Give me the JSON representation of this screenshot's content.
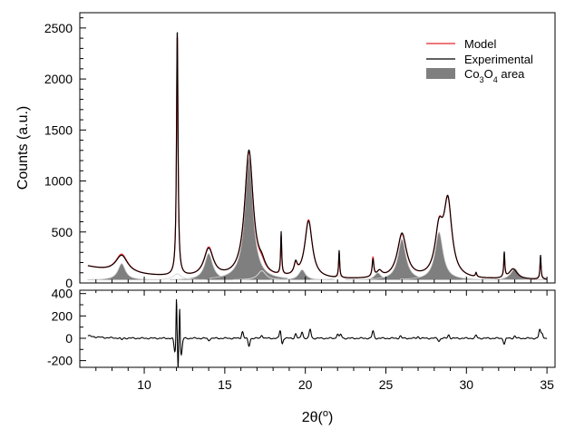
{
  "chart_data": [
    {
      "type": "line",
      "panel": "main",
      "title": "",
      "ylabel": "Counts (a.u.)",
      "xlim": [
        6,
        35.5
      ],
      "ylim": [
        0,
        2650
      ],
      "yticks": [
        0,
        500,
        1000,
        1500,
        2000,
        2500
      ],
      "legend": {
        "position": "top-right",
        "entries": [
          {
            "label": "Model",
            "kind": "line",
            "color": "#e8262a"
          },
          {
            "label": "Experimental",
            "kind": "line",
            "color": "#000000"
          },
          {
            "label_main": "Co",
            "sub1": "3",
            "mid": "O",
            "sub2": "4",
            "tail": " area",
            "kind": "area",
            "color": "#7f7f7f"
          }
        ]
      },
      "baseline": 30,
      "background_offset": 130,
      "background_decay": 3.2,
      "experimental_peaks": [
        {
          "center": 8.6,
          "height": 170,
          "width": 0.45
        },
        {
          "center": 12.05,
          "height": 2430,
          "width": 0.055
        },
        {
          "center": 14.0,
          "height": 275,
          "width": 0.35
        },
        {
          "center": 16.5,
          "height": 1250,
          "width": 0.32
        },
        {
          "center": 17.3,
          "height": 80,
          "width": 0.25
        },
        {
          "center": 18.5,
          "height": 420,
          "width": 0.04
        },
        {
          "center": 19.4,
          "height": 110,
          "width": 0.12
        },
        {
          "center": 20.2,
          "height": 560,
          "width": 0.28
        },
        {
          "center": 22.1,
          "height": 270,
          "width": 0.04
        },
        {
          "center": 24.2,
          "height": 170,
          "width": 0.06
        },
        {
          "center": 24.6,
          "height": 60,
          "width": 0.2
        },
        {
          "center": 26.0,
          "height": 440,
          "width": 0.35
        },
        {
          "center": 28.3,
          "height": 430,
          "width": 0.3
        },
        {
          "center": 28.85,
          "height": 720,
          "width": 0.3
        },
        {
          "center": 30.6,
          "height": 40,
          "width": 0.05
        },
        {
          "center": 32.35,
          "height": 250,
          "width": 0.04
        },
        {
          "center": 32.9,
          "height": 100,
          "width": 0.3
        },
        {
          "center": 34.6,
          "height": 240,
          "width": 0.04
        }
      ],
      "model_peaks": [
        {
          "center": 8.6,
          "height": 180,
          "width": 0.45
        },
        {
          "center": 12.05,
          "height": 2380,
          "width": 0.055
        },
        {
          "center": 14.0,
          "height": 285,
          "width": 0.35
        },
        {
          "center": 16.5,
          "height": 1240,
          "width": 0.32
        },
        {
          "center": 17.3,
          "height": 60,
          "width": 0.25
        },
        {
          "center": 18.5,
          "height": 380,
          "width": 0.04
        },
        {
          "center": 19.4,
          "height": 100,
          "width": 0.12
        },
        {
          "center": 20.2,
          "height": 570,
          "width": 0.28
        },
        {
          "center": 22.1,
          "height": 240,
          "width": 0.04
        },
        {
          "center": 24.2,
          "height": 190,
          "width": 0.06
        },
        {
          "center": 24.6,
          "height": 60,
          "width": 0.2
        },
        {
          "center": 26.0,
          "height": 430,
          "width": 0.35
        },
        {
          "center": 28.3,
          "height": 440,
          "width": 0.3
        },
        {
          "center": 28.85,
          "height": 710,
          "width": 0.3
        },
        {
          "center": 30.6,
          "height": 40,
          "width": 0.05
        },
        {
          "center": 32.35,
          "height": 230,
          "width": 0.04
        },
        {
          "center": 32.9,
          "height": 100,
          "width": 0.3
        },
        {
          "center": 34.6,
          "height": 220,
          "width": 0.04
        }
      ],
      "co3o4_peaks": [
        {
          "center": 8.6,
          "height": 160,
          "width": 0.28
        },
        {
          "center": 14.0,
          "height": 260,
          "width": 0.3
        },
        {
          "center": 16.5,
          "height": 1200,
          "width": 0.3
        },
        {
          "center": 19.8,
          "height": 100,
          "width": 0.25
        },
        {
          "center": 24.5,
          "height": 70,
          "width": 0.25
        },
        {
          "center": 26.0,
          "height": 400,
          "width": 0.3
        },
        {
          "center": 28.3,
          "height": 470,
          "width": 0.3
        },
        {
          "center": 33.0,
          "height": 110,
          "width": 0.3
        }
      ],
      "phase_curves": [
        {
          "center": 12.05,
          "height": 60,
          "width": 0.3
        },
        {
          "center": 17.3,
          "height": 90,
          "width": 0.3
        },
        {
          "center": 22.1,
          "height": 40,
          "width": 0.3
        },
        {
          "center": 31.5,
          "height": 30,
          "width": 0.3
        },
        {
          "center": 34.6,
          "height": 40,
          "width": 0.3
        }
      ]
    },
    {
      "type": "line",
      "panel": "residual",
      "xlabel_main": "2θ(",
      "xlabel_sup": "o",
      "xlabel_tail": ")",
      "xlim": [
        6,
        35.5
      ],
      "ylim": [
        -260,
        430
      ],
      "yticks": [
        -200,
        0,
        200,
        400
      ],
      "xticks": [
        10,
        15,
        20,
        25,
        30,
        35
      ],
      "residual_spikes": [
        {
          "x": 8.6,
          "y": -15
        },
        {
          "x": 11.9,
          "y": -120
        },
        {
          "x": 12.0,
          "y": 380
        },
        {
          "x": 12.1,
          "y": -260
        },
        {
          "x": 12.2,
          "y": 300
        },
        {
          "x": 12.3,
          "y": -150
        },
        {
          "x": 14.0,
          "y": -20
        },
        {
          "x": 16.1,
          "y": 60
        },
        {
          "x": 16.5,
          "y": -70
        },
        {
          "x": 17.3,
          "y": 30
        },
        {
          "x": 18.45,
          "y": 80
        },
        {
          "x": 18.55,
          "y": -60
        },
        {
          "x": 19.4,
          "y": 40
        },
        {
          "x": 19.8,
          "y": 60
        },
        {
          "x": 20.3,
          "y": 80
        },
        {
          "x": 22.0,
          "y": 40
        },
        {
          "x": 22.2,
          "y": 35
        },
        {
          "x": 24.2,
          "y": 65
        },
        {
          "x": 25.9,
          "y": 20
        },
        {
          "x": 27.0,
          "y": 15
        },
        {
          "x": 28.3,
          "y": -25
        },
        {
          "x": 28.9,
          "y": 30
        },
        {
          "x": 30.6,
          "y": 25
        },
        {
          "x": 32.35,
          "y": -50
        },
        {
          "x": 33.0,
          "y": 20
        },
        {
          "x": 34.55,
          "y": 75
        },
        {
          "x": 34.7,
          "y": 45
        }
      ]
    }
  ]
}
